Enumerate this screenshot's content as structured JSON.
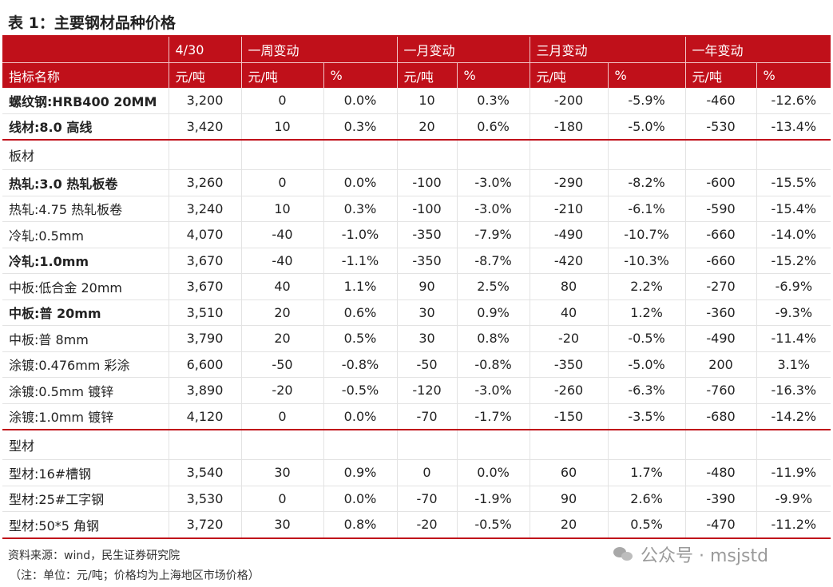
{
  "title": "表 1：主要钢材品种价格",
  "header": {
    "row1": [
      "",
      "4/30",
      "一周变动",
      "一月变动",
      "三月变动",
      "一年变动"
    ],
    "row2": [
      "指标名称",
      "元/吨",
      "元/吨",
      "%",
      "元/吨",
      "%",
      "元/吨",
      "%",
      "元/吨",
      "%"
    ]
  },
  "rows": [
    {
      "cells": [
        "螺纹钢:HRB400 20MM",
        "3,200",
        "0",
        "0.0%",
        "10",
        "0.3%",
        "-200",
        "-5.9%",
        "-460",
        "-12.6%"
      ],
      "bold": true
    },
    {
      "cells": [
        "线材:8.0 高线",
        "3,420",
        "10",
        "0.3%",
        "20",
        "0.6%",
        "-180",
        "-5.0%",
        "-530",
        "-13.4%"
      ],
      "bold": true,
      "sec_end": true
    },
    {
      "cells": [
        "板材",
        "",
        "",
        "",
        "",
        "",
        "",
        "",
        "",
        ""
      ],
      "section": true
    },
    {
      "cells": [
        "热轧:3.0 热轧板卷",
        "3,260",
        "0",
        "0.0%",
        "-100",
        "-3.0%",
        "-290",
        "-8.2%",
        "-600",
        "-15.5%"
      ],
      "bold": true
    },
    {
      "cells": [
        "热轧:4.75 热轧板卷",
        "3,240",
        "10",
        "0.3%",
        "-100",
        "-3.0%",
        "-210",
        "-6.1%",
        "-590",
        "-15.4%"
      ]
    },
    {
      "cells": [
        "冷轧:0.5mm",
        "4,070",
        "-40",
        "-1.0%",
        "-350",
        "-7.9%",
        "-490",
        "-10.7%",
        "-660",
        "-14.0%"
      ]
    },
    {
      "cells": [
        "冷轧:1.0mm",
        "3,670",
        "-40",
        "-1.1%",
        "-350",
        "-8.7%",
        "-420",
        "-10.3%",
        "-660",
        "-15.2%"
      ],
      "bold": true
    },
    {
      "cells": [
        "中板:低合金 20mm",
        "3,670",
        "40",
        "1.1%",
        "90",
        "2.5%",
        "80",
        "2.2%",
        "-270",
        "-6.9%"
      ]
    },
    {
      "cells": [
        "中板:普 20mm",
        "3,510",
        "20",
        "0.6%",
        "30",
        "0.9%",
        "40",
        "1.2%",
        "-360",
        "-9.3%"
      ],
      "bold": true
    },
    {
      "cells": [
        "中板:普 8mm",
        "3,790",
        "20",
        "0.5%",
        "30",
        "0.8%",
        "-20",
        "-0.5%",
        "-490",
        "-11.4%"
      ]
    },
    {
      "cells": [
        "涂镀:0.476mm 彩涂",
        "6,600",
        "-50",
        "-0.8%",
        "-50",
        "-0.8%",
        "-350",
        "-5.0%",
        "200",
        "3.1%"
      ]
    },
    {
      "cells": [
        "涂镀:0.5mm 镀锌",
        "3,890",
        "-20",
        "-0.5%",
        "-120",
        "-3.0%",
        "-260",
        "-6.3%",
        "-760",
        "-16.3%"
      ]
    },
    {
      "cells": [
        "涂镀:1.0mm 镀锌",
        "4,120",
        "0",
        "0.0%",
        "-70",
        "-1.7%",
        "-150",
        "-3.5%",
        "-680",
        "-14.2%"
      ],
      "sec_end": true
    },
    {
      "cells": [
        "型材",
        "",
        "",
        "",
        "",
        "",
        "",
        "",
        "",
        ""
      ],
      "section": true
    },
    {
      "cells": [
        "型材:16#槽钢",
        "3,540",
        "30",
        "0.9%",
        "0",
        "0.0%",
        "60",
        "1.7%",
        "-480",
        "-11.9%"
      ]
    },
    {
      "cells": [
        "型材:25#工字钢",
        "3,530",
        "0",
        "0.0%",
        "-70",
        "-1.9%",
        "90",
        "2.6%",
        "-390",
        "-9.9%"
      ]
    },
    {
      "cells": [
        "型材:50*5 角钢",
        "3,720",
        "30",
        "0.8%",
        "-20",
        "-0.5%",
        "20",
        "0.5%",
        "-470",
        "-11.2%"
      ],
      "sec_end": true
    }
  ],
  "footer": {
    "source": "资料来源：wind，民生证券研究院",
    "note": "（注：单位：元/吨；价格均为上海地区市场价格）"
  },
  "watermark": "公众号 · msjstd",
  "colors": {
    "accent": "#c0101a"
  }
}
